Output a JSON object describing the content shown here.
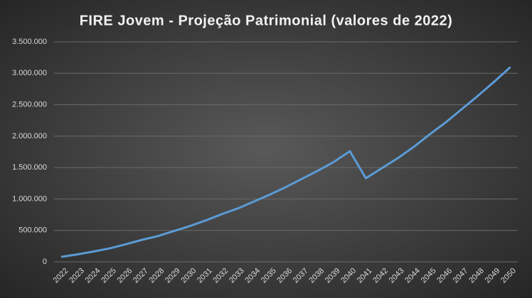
{
  "chart_data": {
    "type": "line",
    "title": "FIRE Jovem - Projeção Patrimonial (valores de 2022)",
    "categories": [
      "2022",
      "2023",
      "2024",
      "2025",
      "2026",
      "2027",
      "2028",
      "2029",
      "2030",
      "2031",
      "2032",
      "2033",
      "2034",
      "2035",
      "2036",
      "2037",
      "2038",
      "2039",
      "2040",
      "2041",
      "2042",
      "2043",
      "2044",
      "2045",
      "2046",
      "2047",
      "2048",
      "2049",
      "2050"
    ],
    "values": [
      80000,
      120000,
      165000,
      215000,
      280000,
      350000,
      410000,
      490000,
      570000,
      660000,
      760000,
      850000,
      960000,
      1070000,
      1190000,
      1320000,
      1450000,
      1590000,
      1760000,
      1330000,
      1490000,
      1650000,
      1830000,
      2030000,
      2220000,
      2430000,
      2640000,
      2860000,
      3090000
    ],
    "color": "#5b9bd5",
    "ylim": [
      0,
      3500000
    ],
    "yticks": [
      0,
      {
        "value": 500000,
        "label": "500.000"
      },
      {
        "value": 1000000,
        "label": "1.000.000"
      },
      {
        "value": 1500000,
        "label": "1.500.000"
      },
      {
        "value": 2000000,
        "label": "2.000.000"
      },
      {
        "value": 2500000,
        "label": "2.500.000"
      },
      {
        "value": 3000000,
        "label": "3.000.000"
      },
      {
        "value": 3500000,
        "label": "3.500.000"
      }
    ],
    "grid": true
  }
}
